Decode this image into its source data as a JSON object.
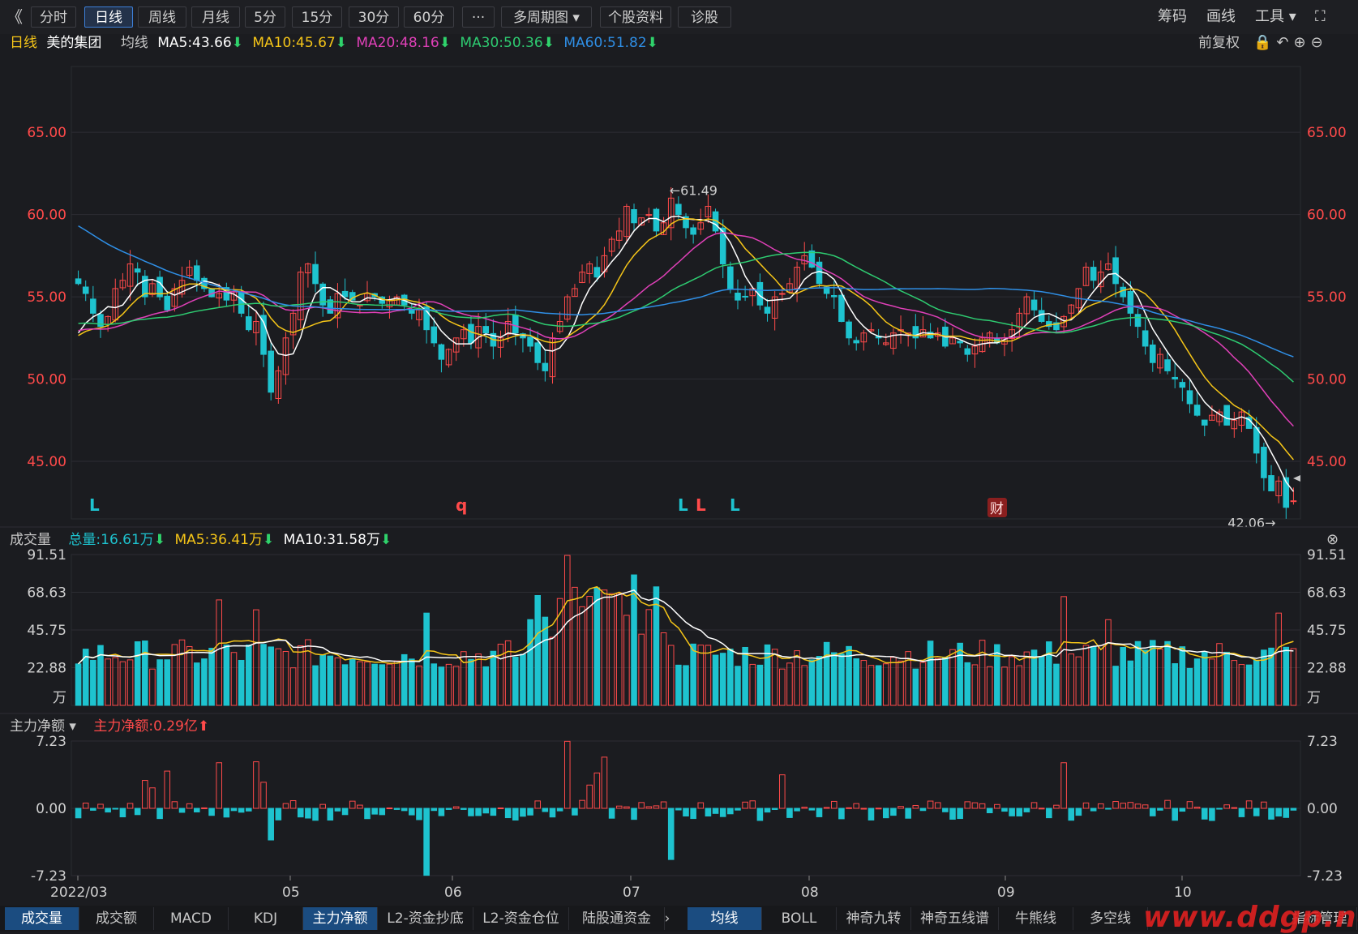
{
  "toolbar": {
    "collapse_label": "《",
    "tabs": [
      "分时",
      "日线",
      "周线",
      "月线",
      "5分",
      "15分",
      "30分",
      "60分",
      "···",
      "多周期图 ▾",
      "个股资料",
      "诊股"
    ],
    "active_tab": 1,
    "right_items": [
      "筹码",
      "画线",
      "工具 ▾",
      "⛶"
    ]
  },
  "kline_info": {
    "period": "日线",
    "stock_name": "美的集团",
    "ma_label": "均线",
    "ma5": "MA5:43.66",
    "ma10": "MA10:45.67",
    "ma20": "MA20:48.16",
    "ma30": "MA30:50.36",
    "ma60": "MA60:51.82",
    "adjust": "前复权"
  },
  "volume_info": {
    "label": "成交量",
    "total": "总量:16.61万",
    "ma5": "MA5:36.41万",
    "ma10": "MA10:31.58万"
  },
  "flow_info": {
    "label": "主力净额 ▾",
    "value": "主力净额:0.29亿"
  },
  "colors": {
    "up": "#ff4a4a",
    "down": "#1ec3cf",
    "ma5": "#ffffff",
    "ma10": "#f5c518",
    "ma20": "#e040b8",
    "ma30": "#2ecc71",
    "ma60": "#2f8fe6"
  },
  "chart_data": [
    {
      "type": "candlestick",
      "title": "美的集团 日线",
      "x_ticks": [
        "2022/03",
        "05",
        "06",
        "07",
        "08",
        "09",
        "10"
      ],
      "y_ticks": [
        "65.00",
        "60.00",
        "55.00",
        "50.00",
        "45.00"
      ],
      "ylim": [
        41.5,
        69
      ],
      "annotations": {
        "high": "61.49",
        "low": "42.06",
        "markers": [
          "L",
          "q",
          "L",
          "L",
          "L",
          "财"
        ]
      },
      "series": {
        "close": [
          55.8,
          55.2,
          54.0,
          53.2,
          53.8,
          55.5,
          56.0,
          57.0,
          56.5,
          55.0,
          55.8,
          55.0,
          54.2,
          55.5,
          56.0,
          56.8,
          56.0,
          55.5,
          55.0,
          55.2,
          54.8,
          55.3,
          54.0,
          53.0,
          53.5,
          51.5,
          49.2,
          50.5,
          52.5,
          54.0,
          56.5,
          57.0,
          55.8,
          54.5,
          54.0,
          55.2,
          55.0,
          54.8,
          54.5,
          55.2,
          55.0,
          54.6,
          54.8,
          55.0,
          54.5,
          54.0,
          54.2,
          53.0,
          52.2,
          51.2,
          51.8,
          52.5,
          53.0,
          52.2,
          53.2,
          52.8,
          52.0,
          52.5,
          53.5,
          52.8,
          52.5,
          52.0,
          51.0,
          50.5,
          52.5,
          53.5,
          55.0,
          55.5,
          56.5,
          57.0,
          56.2,
          57.5,
          58.5,
          59.0,
          60.5,
          59.5,
          59.8,
          60.0,
          59.0,
          59.5,
          61.0,
          60.0,
          59.2,
          58.8,
          59.5,
          60.5,
          59.0,
          57.0,
          55.5,
          54.8,
          55.0,
          55.5,
          54.5,
          54.0,
          55.0,
          55.2,
          55.8,
          56.8,
          57.5,
          56.8,
          55.8,
          55.2,
          55.0,
          53.5,
          52.5,
          52.2,
          52.8,
          53.0,
          52.5,
          52.2,
          52.8,
          53.0,
          52.8,
          52.5,
          53.0,
          52.5,
          52.8,
          52.0,
          52.5,
          52.2,
          51.5,
          52.0,
          52.5,
          52.8,
          52.2,
          52.5,
          53.0,
          54.0,
          55.0,
          54.2,
          53.5,
          53.2,
          53.0,
          53.8,
          54.5,
          55.5,
          56.8,
          56.0,
          56.5,
          57.0,
          55.8,
          55.0,
          54.0,
          53.2,
          52.0,
          51.0,
          51.5,
          50.5,
          50.0,
          49.5,
          48.5,
          47.8,
          47.2,
          47.8,
          48.0,
          47.2,
          47.5,
          48.0,
          47.0,
          45.5,
          44.0,
          43.2,
          43.8,
          42.2,
          42.6
        ]
      }
    },
    {
      "type": "bar",
      "title": "成交量",
      "y_ticks": [
        "91.51",
        "68.63",
        "45.75",
        "22.88",
        "万"
      ],
      "ylim": [
        0,
        91.51
      ]
    },
    {
      "type": "bar",
      "title": "主力净额",
      "y_ticks": [
        "7.23",
        "0.00",
        "-7.23"
      ],
      "ylim": [
        -7.23,
        7.23
      ]
    }
  ],
  "bottom_tabs_left": [
    "成交量",
    "成交额",
    "MACD",
    "KDJ",
    "主力净额",
    "L2-资金抄底",
    "L2-资金仓位",
    "陆股通资金"
  ],
  "bottom_tabs_right": [
    "均线",
    "BOLL",
    "神奇九转",
    "神奇五线谱",
    "牛熊线",
    "多空线",
    "指标管理"
  ],
  "watermark": "www.ddgp.net"
}
